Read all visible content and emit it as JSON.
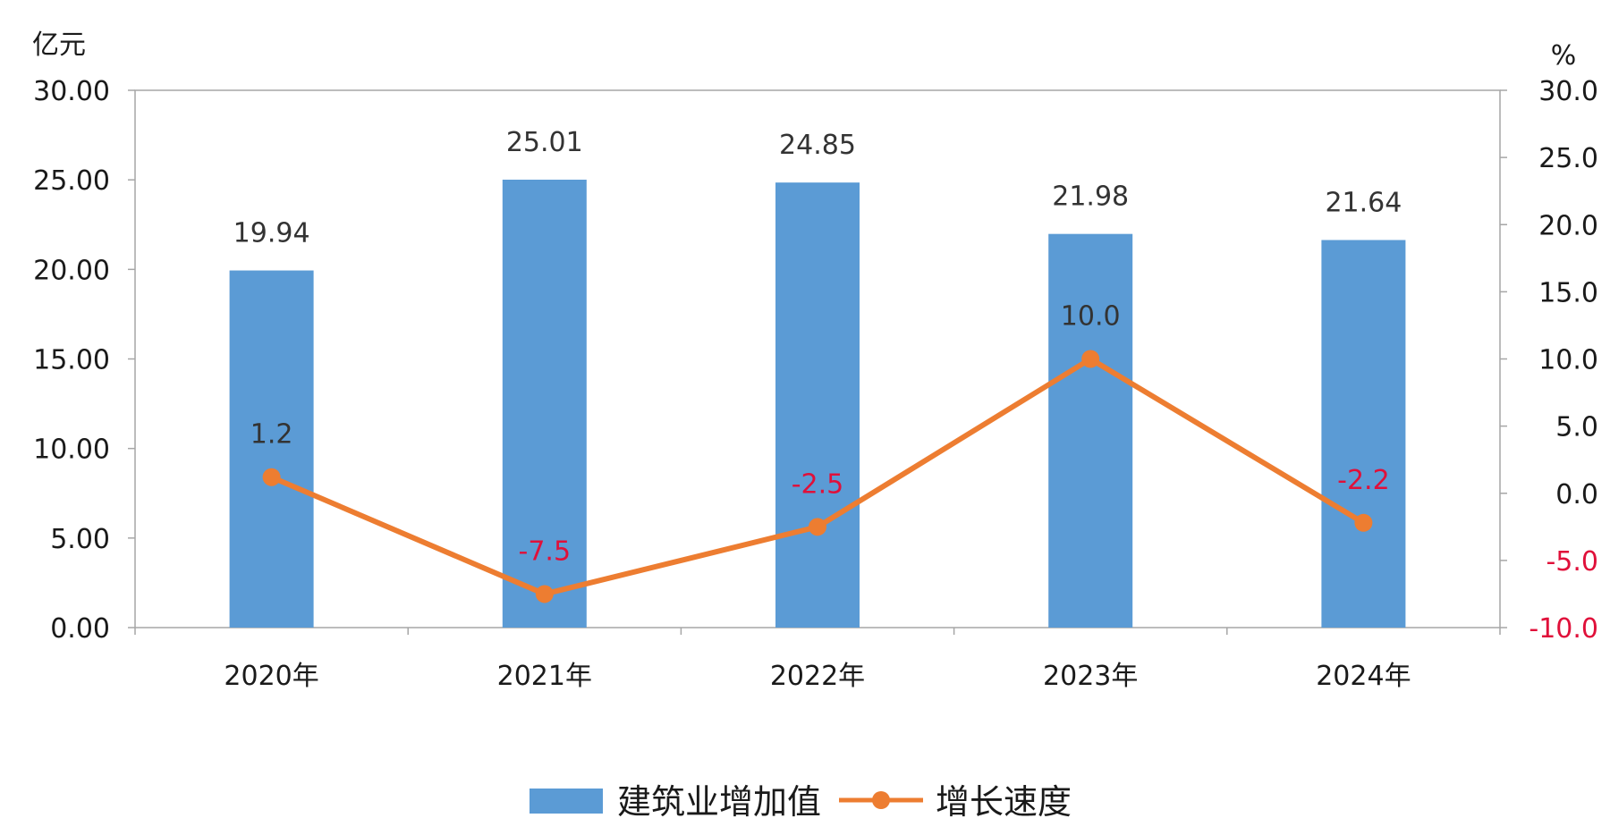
{
  "chart_data": {
    "type": "bar",
    "categories": [
      "2020年",
      "2021年",
      "2022年",
      "2023年",
      "2024年"
    ],
    "series": [
      {
        "name": "建筑业增加值",
        "type": "bar",
        "axis": "left",
        "values": [
          19.94,
          25.01,
          24.85,
          21.98,
          21.64
        ],
        "labels": [
          "19.94",
          "25.01",
          "24.85",
          "21.98",
          "21.64"
        ],
        "color": "#5b9bd5"
      },
      {
        "name": "增长速度",
        "type": "line",
        "axis": "right",
        "values": [
          1.2,
          -7.5,
          -2.5,
          10.0,
          -2.2
        ],
        "labels": [
          "1.2",
          "-7.5",
          "-2.5",
          "10.0",
          "-2.2"
        ],
        "color": "#ed7d31"
      }
    ],
    "left_axis": {
      "unit": "亿元",
      "ylim": [
        0,
        30
      ],
      "ticks": [
        "0.00",
        "5.00",
        "10.00",
        "15.00",
        "20.00",
        "25.00",
        "30.00"
      ]
    },
    "right_axis": {
      "unit": "%",
      "ylim": [
        -10,
        30
      ],
      "ticks": [
        "-10.0",
        "-5.0",
        "0.0",
        "5.0",
        "10.0",
        "15.0",
        "20.0",
        "25.0",
        "30.0"
      ]
    },
    "negative_color": "#e0103a",
    "legend_position": "bottom",
    "grid": false
  }
}
